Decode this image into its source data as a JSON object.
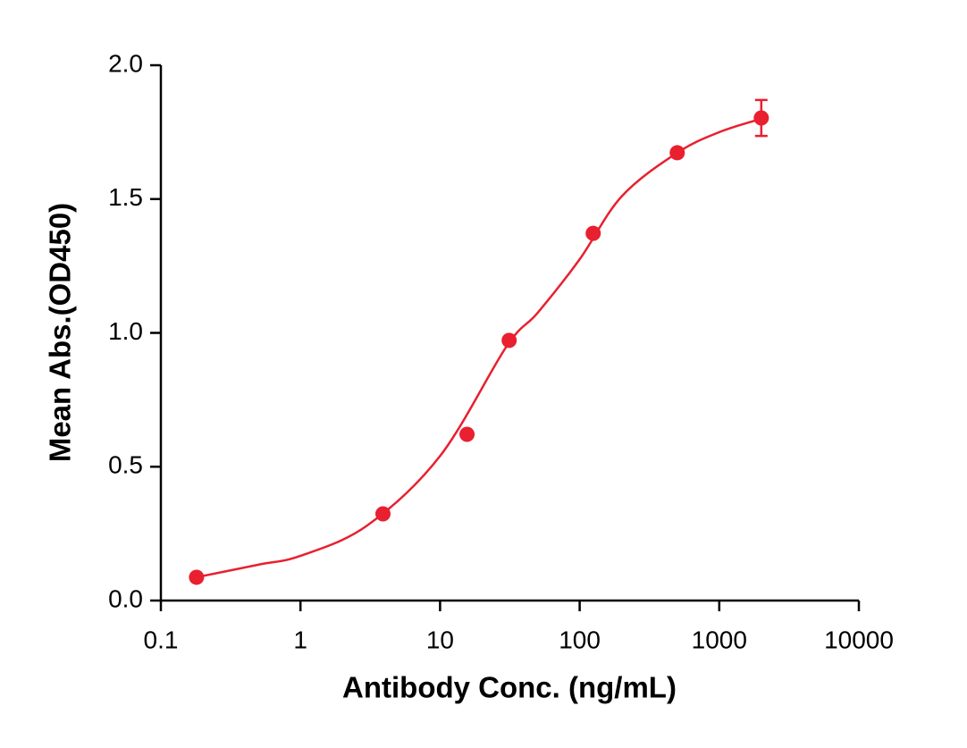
{
  "chart_data": {
    "type": "scatter",
    "xlabel": "Antibody Conc. (ng/mL)",
    "ylabel": "Mean Abs.(OD450)",
    "xscale": "log",
    "xlim": [
      0.1,
      10000
    ],
    "xticks": [
      0.1,
      1,
      10,
      100,
      1000,
      10000
    ],
    "ylim": [
      0,
      2
    ],
    "yticks": [
      {
        "value": 0,
        "label": "0.0"
      },
      {
        "value": 0.5,
        "label": "0.5"
      },
      {
        "value": 1,
        "label": "1.0"
      },
      {
        "value": 1.5,
        "label": "1.5"
      },
      {
        "value": 2,
        "label": "2.0"
      }
    ],
    "color": "#e8202f",
    "points": {
      "x": [
        0.18,
        3.9,
        15.6,
        31.25,
        125,
        500,
        2000
      ],
      "y": [
        0.087,
        0.324,
        0.621,
        0.972,
        1.372,
        1.673,
        1.803
      ],
      "errors": [
        null,
        null,
        null,
        null,
        null,
        null,
        0.067
      ]
    },
    "curve": {
      "x": [
        0.18,
        0.5,
        1,
        3,
        10,
        30,
        50,
        100,
        200,
        500,
        1000,
        2000
      ],
      "y": [
        0.087,
        0.134,
        0.167,
        0.28,
        0.54,
        0.95,
        1.075,
        1.275,
        1.51,
        1.673,
        1.75,
        1.8
      ]
    }
  }
}
